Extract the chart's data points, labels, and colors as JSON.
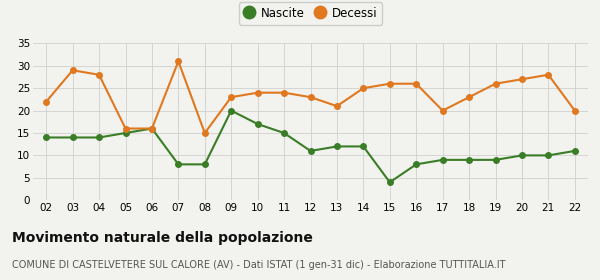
{
  "years": [
    "02",
    "03",
    "04",
    "05",
    "06",
    "07",
    "08",
    "09",
    "10",
    "11",
    "12",
    "13",
    "14",
    "15",
    "16",
    "17",
    "18",
    "19",
    "20",
    "21",
    "22"
  ],
  "nascite": [
    14,
    14,
    14,
    15,
    16,
    8,
    8,
    20,
    17,
    15,
    11,
    12,
    12,
    4,
    8,
    9,
    9,
    9,
    10,
    10,
    11
  ],
  "decessi": [
    22,
    29,
    28,
    16,
    16,
    31,
    15,
    23,
    24,
    24,
    23,
    21,
    25,
    26,
    26,
    20,
    23,
    26,
    27,
    28,
    20
  ],
  "nascite_color": "#3a7d27",
  "decessi_color": "#e07820",
  "background_color": "#f2f2ee",
  "title": "Movimento naturale della popolazione",
  "subtitle": "COMUNE DI CASTELVETERE SUL CALORE (AV) - Dati ISTAT (1 gen-31 dic) - Elaborazione TUTTITALIA.IT",
  "ylim": [
    0,
    35
  ],
  "yticks": [
    0,
    5,
    10,
    15,
    20,
    25,
    30,
    35
  ],
  "legend_labels": [
    "Nascite",
    "Decessi"
  ],
  "marker_size": 4,
  "line_width": 1.5,
  "title_fontsize": 10,
  "subtitle_fontsize": 7,
  "tick_fontsize": 7.5,
  "legend_fontsize": 8.5
}
